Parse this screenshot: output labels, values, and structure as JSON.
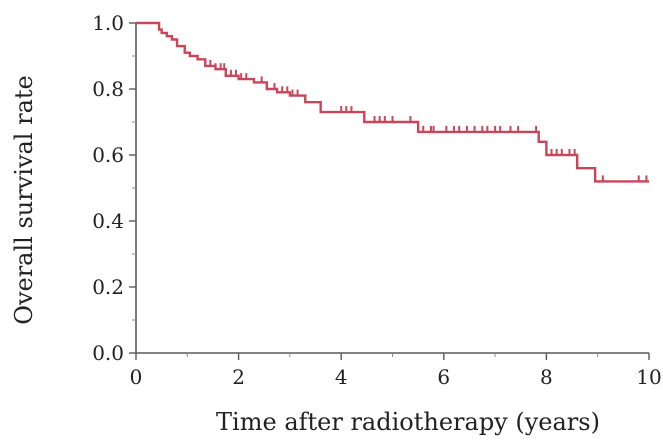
{
  "chart_data": {
    "type": "line",
    "title": "",
    "xlabel": "Time after radiotherapy (years)",
    "ylabel": "Overall survival rate",
    "xlim": [
      0,
      10
    ],
    "ylim": [
      0,
      1.0
    ],
    "x_ticks": [
      "0",
      "2",
      "4",
      "6",
      "8",
      "10"
    ],
    "y_ticks": [
      "0.0",
      "0.2",
      "0.4",
      "0.6",
      "0.8",
      "1.0"
    ],
    "grid": false,
    "legend": "none",
    "series": [
      {
        "color": "#c9455a",
        "style": "step",
        "x": [
          0,
          0.45,
          0.5,
          0.6,
          0.7,
          0.8,
          0.95,
          1.05,
          1.2,
          1.35,
          1.55,
          1.75,
          2.0,
          2.3,
          2.55,
          2.75,
          3.0,
          3.3,
          3.6,
          4.45,
          5.5,
          7.85,
          8.0,
          8.6,
          8.95,
          10.0
        ],
        "y": [
          1.0,
          0.98,
          0.97,
          0.96,
          0.95,
          0.93,
          0.91,
          0.9,
          0.89,
          0.87,
          0.86,
          0.84,
          0.83,
          0.82,
          0.8,
          0.79,
          0.78,
          0.76,
          0.73,
          0.7,
          0.67,
          0.64,
          0.6,
          0.56,
          0.52,
          0.52
        ],
        "censored": [
          1.45,
          1.55,
          1.65,
          1.72,
          1.85,
          1.95,
          2.05,
          2.15,
          2.45,
          2.7,
          2.85,
          2.95,
          3.05,
          3.15,
          4.0,
          4.1,
          4.2,
          4.65,
          4.75,
          4.85,
          5.0,
          5.35,
          5.6,
          5.75,
          5.8,
          6.05,
          6.2,
          6.3,
          6.45,
          6.6,
          6.75,
          6.85,
          7.0,
          7.1,
          7.3,
          7.45,
          7.8,
          8.1,
          8.2,
          8.3,
          8.45,
          8.55,
          9.1,
          9.8,
          9.95
        ]
      }
    ]
  }
}
